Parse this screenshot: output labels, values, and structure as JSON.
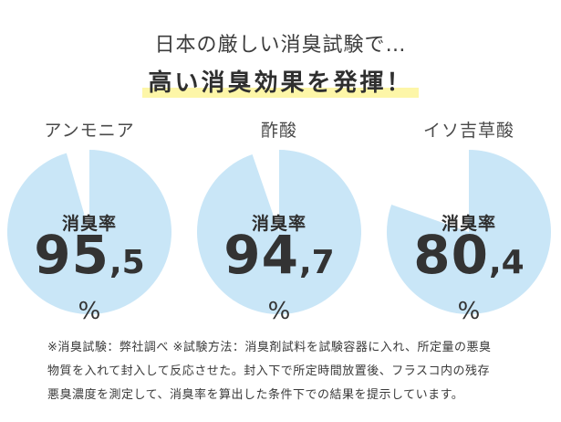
{
  "header": {
    "line1": "日本の厳しい消臭試験で…",
    "line2": "高い消臭効果を発揮！"
  },
  "colors": {
    "pie_fill": "#c9e6f7",
    "highlight": "#fdf6a8",
    "text": "#333333"
  },
  "panels": [
    {
      "name": "アンモニア",
      "label": "消臭率",
      "int": "95",
      "dec": ",5",
      "unit": "%",
      "rate": 95.5
    },
    {
      "name": "酢酸",
      "label": "消臭率",
      "int": "94",
      "dec": ",7",
      "unit": "%",
      "rate": 94.7
    },
    {
      "name": "イソ吉草酸",
      "label": "消臭率",
      "int": "80",
      "dec": ",4",
      "unit": "%",
      "rate": 80.4
    }
  ],
  "footnote": {
    "line1": "※消臭試験：弊社調べ ※試験方法：消臭剤試料を試験容器に入れ、所定量の悪臭",
    "line2": "物質を入れて封入して反応させた。封入下で所定時間放置後、フラスコ内の残存",
    "line3": "悪臭濃度を測定して、消臭率を算出した条件下での結果を提示しています。"
  }
}
